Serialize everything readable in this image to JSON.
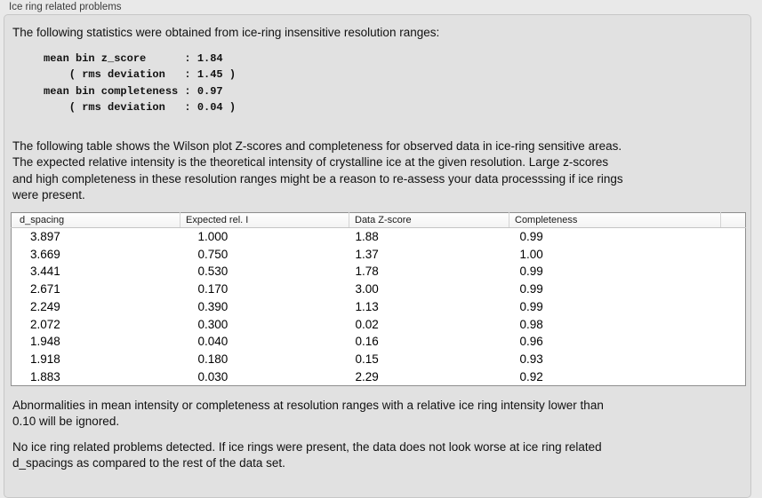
{
  "panel": {
    "title": "Ice ring related problems",
    "intro": "The following statistics were obtained from ice-ring insensitive resolution ranges:",
    "stats": "mean bin z_score      : 1.84\n    ( rms deviation   : 1.45 )\nmean bin completeness : 0.97\n    ( rms deviation   : 0.04 )",
    "description": "The following table shows the Wilson plot Z-scores and completeness for observed data in ice-ring sensitive areas.\nThe expected relative intensity is the theoretical intensity of crystalline ice at the given resolution. Large z-scores\nand high completeness in these resolution ranges might be a reason to re-assess your data processsing if ice rings\nwere present.",
    "note": "Abnormalities in mean intensity or completeness at resolution ranges with a relative ice ring intensity lower than\n0.10 will be ignored.",
    "conclusion": "No ice ring related problems detected. If ice rings were present, the data does not look worse at ice ring related\nd_spacings as compared to the rest of the data set."
  },
  "table": {
    "headers": [
      "d_spacing",
      "Expected rel. I",
      "Data Z-score",
      "Completeness",
      ""
    ],
    "rows": [
      [
        "3.897",
        "1.000",
        "1.88",
        "0.99",
        ""
      ],
      [
        "3.669",
        "0.750",
        "1.37",
        "1.00",
        ""
      ],
      [
        "3.441",
        "0.530",
        "1.78",
        "0.99",
        ""
      ],
      [
        "2.671",
        "0.170",
        "3.00",
        "0.99",
        ""
      ],
      [
        "2.249",
        "0.390",
        "1.13",
        "0.99",
        ""
      ],
      [
        "2.072",
        "0.300",
        "0.02",
        "0.98",
        ""
      ],
      [
        "1.948",
        "0.040",
        "0.16",
        "0.96",
        ""
      ],
      [
        "1.918",
        "0.180",
        "0.15",
        "0.93",
        ""
      ],
      [
        "1.883",
        "0.030",
        "2.29",
        "0.92",
        ""
      ]
    ]
  }
}
